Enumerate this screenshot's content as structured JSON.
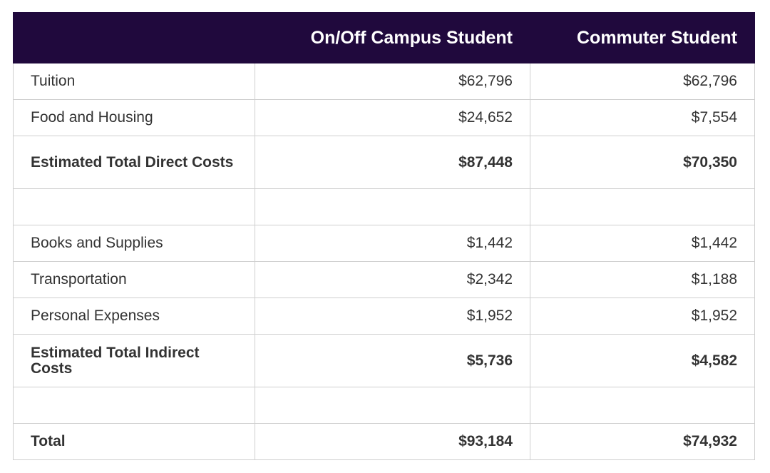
{
  "table": {
    "header": [
      "On/Off Campus Student",
      "Commuter Student"
    ],
    "sections": [
      [
        {
          "label": "Tuition",
          "values": [
            "$62,796",
            "$62,796"
          ]
        },
        {
          "label": "Food and Housing",
          "values": [
            "$24,652",
            "$7,554"
          ]
        },
        {
          "label": "Estimated Total Direct Costs",
          "values": [
            "$87,448",
            "$70,350"
          ],
          "bold": true
        }
      ],
      [
        {
          "label": "Books and Supplies",
          "values": [
            "$1,442",
            "$1,442"
          ]
        },
        {
          "label": "Transportation",
          "values": [
            "$2,342",
            "$1,188"
          ]
        },
        {
          "label": "Personal Expenses",
          "values": [
            "$1,952",
            "$1,952"
          ]
        },
        {
          "label": "Estimated Total Indirect Costs",
          "values": [
            "$5,736",
            "$4,582"
          ],
          "bold": true
        }
      ],
      [
        {
          "label": "Total",
          "values": [
            "$93,184",
            "$74,932"
          ],
          "bold": true
        }
      ]
    ]
  }
}
